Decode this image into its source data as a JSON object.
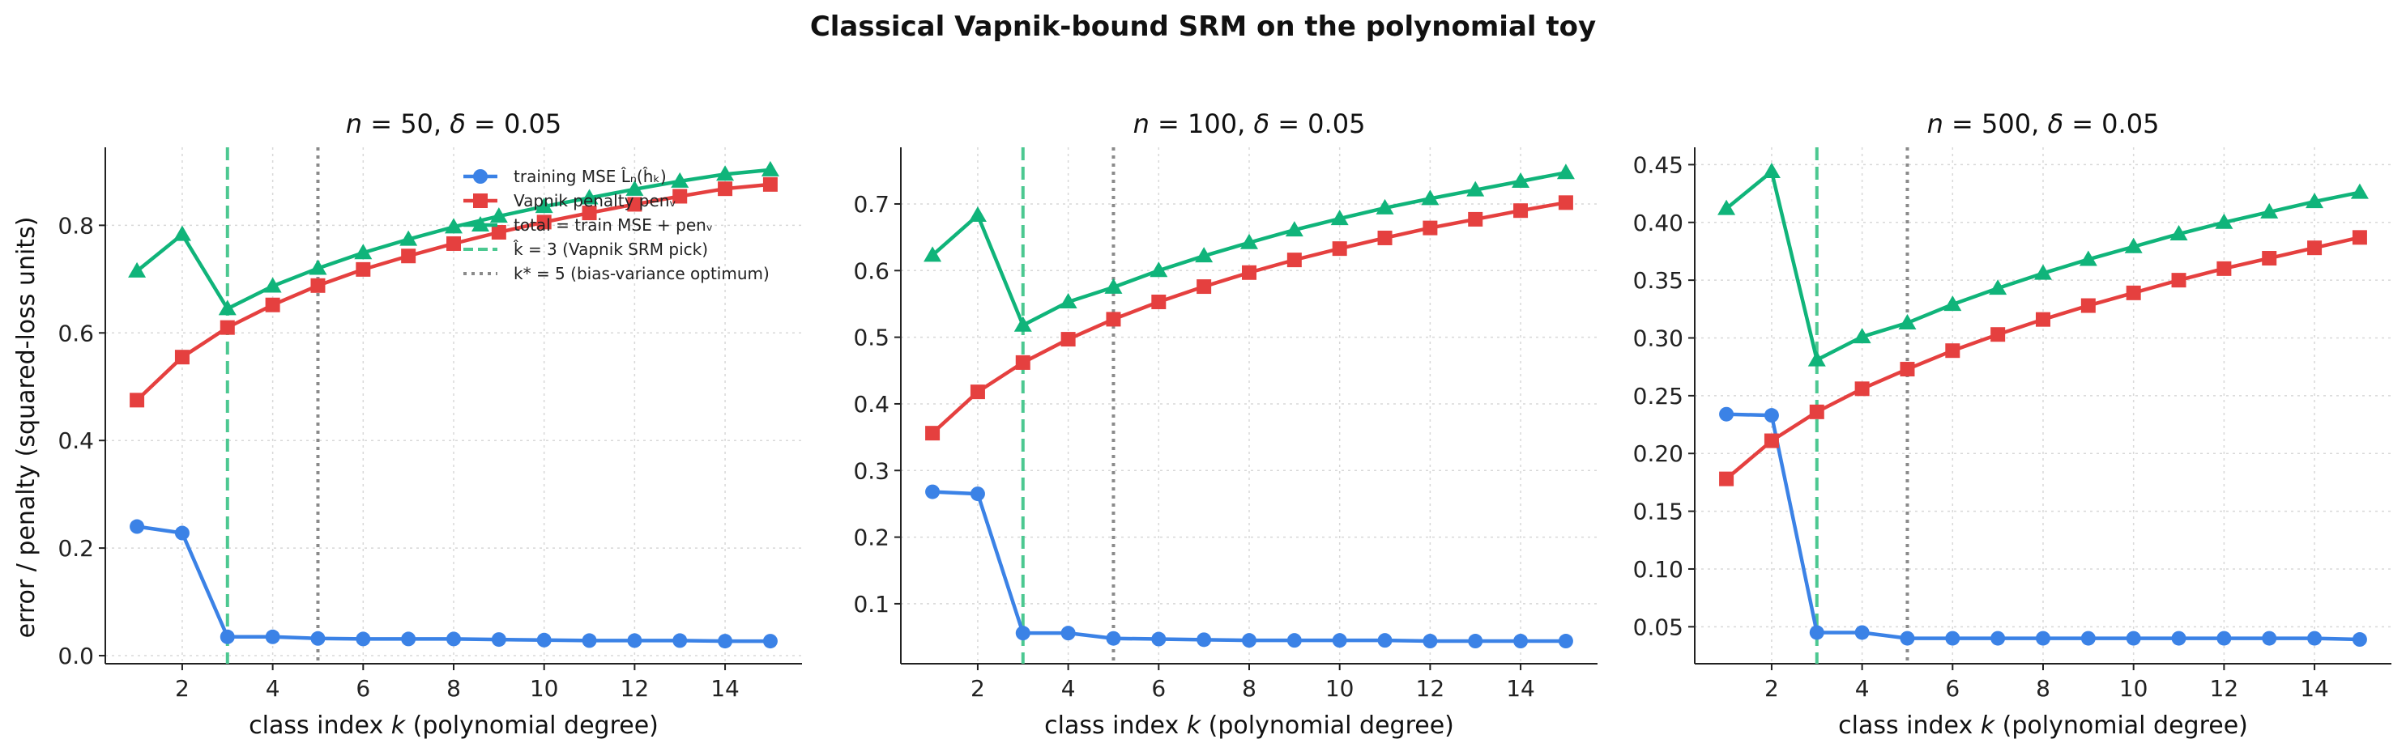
{
  "figure": {
    "title": "Classical Vapnik-bound SRM on the polynomial toy",
    "ylabel": "error / penalty (squared-loss units)"
  },
  "legend": {
    "placement": "upper-right of first panel",
    "entries": [
      {
        "key": "train",
        "label": "training MSE  L̂ₙ(ĥₖ)",
        "style": "solid-circle"
      },
      {
        "key": "pen",
        "label": "Vapnik penalty  penᵥ",
        "style": "solid-square"
      },
      {
        "key": "total",
        "label": "total = train MSE + penᵥ",
        "style": "solid-triangle"
      },
      {
        "key": "khat",
        "label": "k̂ = 3  (Vapnik SRM pick)",
        "style": "dashed"
      },
      {
        "key": "kstar",
        "label": "k* = 5  (bias-variance optimum)",
        "style": "dotted"
      }
    ]
  },
  "colors": {
    "train": "#3b82e6",
    "pen": "#e5403f",
    "total": "#10b47a",
    "khat": "#4cc891",
    "kstar": "#8a8a8a",
    "grid": "#d8d8d8"
  },
  "chart_data": [
    {
      "type": "line",
      "title": "n = 50,  δ = 0.05",
      "title_parts": {
        "n": "50",
        "delta": "0.05"
      },
      "xlabel": "class index k (polynomial degree)",
      "ylabel": "error / penalty (squared-loss units)",
      "x": [
        1,
        2,
        3,
        4,
        5,
        6,
        7,
        8,
        9,
        10,
        11,
        12,
        13,
        14,
        15
      ],
      "xlim": [
        0.3,
        15.7
      ],
      "ylim": [
        -0.015,
        0.945
      ],
      "xticks": [
        2,
        4,
        6,
        8,
        10,
        12,
        14
      ],
      "yticks": [
        0.0,
        0.2,
        0.4,
        0.6,
        0.8
      ],
      "ytick_labels": [
        "0.0",
        "0.2",
        "0.4",
        "0.6",
        "0.8"
      ],
      "vlines": {
        "khat": 3,
        "kstar": 5
      },
      "grid": true,
      "series": [
        {
          "key": "train",
          "name": "training MSE",
          "values": [
            0.24,
            0.228,
            0.035,
            0.035,
            0.032,
            0.031,
            0.031,
            0.031,
            0.03,
            0.029,
            0.028,
            0.028,
            0.028,
            0.027,
            0.027
          ]
        },
        {
          "key": "pen",
          "name": "Vapnik penalty",
          "values": [
            0.475,
            0.555,
            0.61,
            0.652,
            0.688,
            0.718,
            0.743,
            0.766,
            0.787,
            0.806,
            0.823,
            0.839,
            0.854,
            0.868,
            0.876
          ]
        },
        {
          "key": "total",
          "name": "total",
          "values": [
            0.715,
            0.783,
            0.645,
            0.687,
            0.72,
            0.749,
            0.774,
            0.797,
            0.817,
            0.835,
            0.851,
            0.867,
            0.882,
            0.895,
            0.903
          ]
        }
      ]
    },
    {
      "type": "line",
      "title": "n = 100,  δ = 0.05",
      "title_parts": {
        "n": "100",
        "delta": "0.05"
      },
      "xlabel": "class index k (polynomial degree)",
      "ylabel": "",
      "x": [
        1,
        2,
        3,
        4,
        5,
        6,
        7,
        8,
        9,
        10,
        11,
        12,
        13,
        14,
        15
      ],
      "xlim": [
        0.3,
        15.7
      ],
      "ylim": [
        0.01,
        0.785
      ],
      "xticks": [
        2,
        4,
        6,
        8,
        10,
        12,
        14
      ],
      "yticks": [
        0.1,
        0.2,
        0.3,
        0.4,
        0.5,
        0.6,
        0.7
      ],
      "ytick_labels": [
        "0.1",
        "0.2",
        "0.3",
        "0.4",
        "0.5",
        "0.6",
        "0.7"
      ],
      "vlines": {
        "khat": 3,
        "kstar": 5
      },
      "grid": true,
      "series": [
        {
          "key": "train",
          "name": "training MSE",
          "values": [
            0.268,
            0.265,
            0.056,
            0.056,
            0.048,
            0.047,
            0.046,
            0.045,
            0.045,
            0.045,
            0.045,
            0.044,
            0.044,
            0.044,
            0.044
          ]
        },
        {
          "key": "pen",
          "name": "Vapnik penalty",
          "values": [
            0.356,
            0.418,
            0.462,
            0.497,
            0.527,
            0.553,
            0.576,
            0.597,
            0.616,
            0.633,
            0.649,
            0.664,
            0.677,
            0.69,
            0.702
          ]
        },
        {
          "key": "total",
          "name": "total",
          "values": [
            0.623,
            0.683,
            0.518,
            0.553,
            0.575,
            0.6,
            0.622,
            0.642,
            0.661,
            0.678,
            0.694,
            0.708,
            0.721,
            0.734,
            0.747
          ]
        }
      ]
    },
    {
      "type": "line",
      "title": "n = 500,  δ = 0.05",
      "title_parts": {
        "n": "500",
        "delta": "0.05"
      },
      "xlabel": "class index k (polynomial degree)",
      "ylabel": "",
      "x": [
        1,
        2,
        3,
        4,
        5,
        6,
        7,
        8,
        9,
        10,
        11,
        12,
        13,
        14,
        15
      ],
      "xlim": [
        0.3,
        15.7
      ],
      "ylim": [
        0.018,
        0.465
      ],
      "xticks": [
        2,
        4,
        6,
        8,
        10,
        12,
        14
      ],
      "yticks": [
        0.05,
        0.1,
        0.15,
        0.2,
        0.25,
        0.3,
        0.35,
        0.4,
        0.45
      ],
      "ytick_labels": [
        "0.05",
        "0.10",
        "0.15",
        "0.20",
        "0.25",
        "0.30",
        "0.35",
        "0.40",
        "0.45"
      ],
      "vlines": {
        "khat": 3,
        "kstar": 5
      },
      "grid": true,
      "series": [
        {
          "key": "train",
          "name": "training MSE",
          "values": [
            0.234,
            0.233,
            0.045,
            0.045,
            0.04,
            0.04,
            0.04,
            0.04,
            0.04,
            0.04,
            0.04,
            0.04,
            0.04,
            0.04,
            0.039
          ]
        },
        {
          "key": "pen",
          "name": "Vapnik penalty",
          "values": [
            0.178,
            0.211,
            0.236,
            0.256,
            0.273,
            0.289,
            0.303,
            0.316,
            0.328,
            0.339,
            0.35,
            0.36,
            0.369,
            0.378,
            0.387
          ]
        },
        {
          "key": "total",
          "name": "total",
          "values": [
            0.412,
            0.444,
            0.281,
            0.301,
            0.313,
            0.329,
            0.343,
            0.356,
            0.368,
            0.379,
            0.39,
            0.4,
            0.409,
            0.418,
            0.426
          ]
        }
      ]
    }
  ]
}
